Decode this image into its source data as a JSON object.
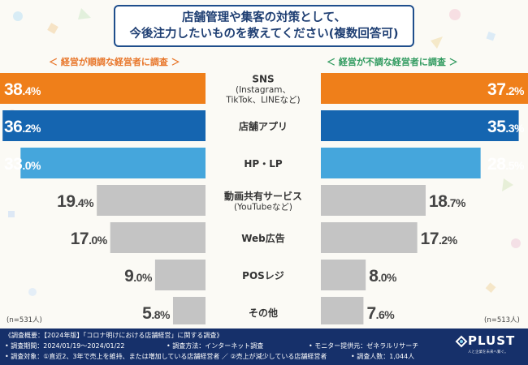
{
  "title": {
    "line1": "店舗管理や集客の対策として、",
    "line2": "今後注力したいものを教えてください(複数回答可)"
  },
  "left_group_label": "＜ 経営が順調な経営者に調査 ＞",
  "right_group_label": "＜ 経営が不調な経営者に調査 ＞",
  "left_n": "(n=531人)",
  "right_n": "(n=513人)",
  "colors": {
    "title_border": "#1f4e8c",
    "left_label": "#e8762a",
    "right_label": "#2f9a5e",
    "bar_top1": "#ef7f1a",
    "bar_top2": "#1565b0",
    "bar_top3": "#45a6dc",
    "bar_other": "#c4c4c4",
    "footer_bg": "#16306a"
  },
  "chart_data": {
    "type": "bar",
    "orientation": "horizontal",
    "mirrored": true,
    "categories": [
      [
        "SNS",
        "(Instagram、",
        "TikTok、LINEなど)"
      ],
      [
        "店舗アプリ"
      ],
      [
        "HP・LP"
      ],
      [
        "動画共有サービス",
        "(YouTubeなど)"
      ],
      [
        "Web広告"
      ],
      [
        "POSレジ"
      ],
      [
        "その他"
      ]
    ],
    "series": [
      {
        "name": "経営が順調な経営者に調査",
        "values": [
          38.4,
          36.2,
          33.0,
          19.4,
          17.0,
          9.0,
          5.8
        ],
        "labels": [
          "38.4%",
          "36.2%",
          "33.0%",
          "19.4%",
          "17.0%",
          "9.0%",
          "5.8%"
        ]
      },
      {
        "name": "経営が不調な経営者に調査",
        "values": [
          37.2,
          35.3,
          28.5,
          18.7,
          17.2,
          8.0,
          7.6
        ],
        "labels": [
          "37.2%",
          "35.3%",
          "28.5%",
          "18.7%",
          "17.2%",
          "8.0%",
          "7.6%"
        ]
      }
    ],
    "value_unit": "%"
  },
  "footer": {
    "line1": "《調査概要：【2024年版】「コロナ明けにおける店舗経営」に関する調査》",
    "line2a": "• 調査期間：2024/01/19〜2024/01/22",
    "line2b": "• 調査方法：インターネット調査",
    "line2c": "• モニター提供元：ゼネラルリサーチ",
    "line3a": "• 調査対象：①直近2、3年で売上を維持、または増加している店舗経営者 ／ ②売上が減少している店舗経営者",
    "line3b": "• 調査人数：1,044人",
    "logo_text": "PLUST",
    "logo_tagline": "人と企業を未来へ繋ぐ。"
  }
}
